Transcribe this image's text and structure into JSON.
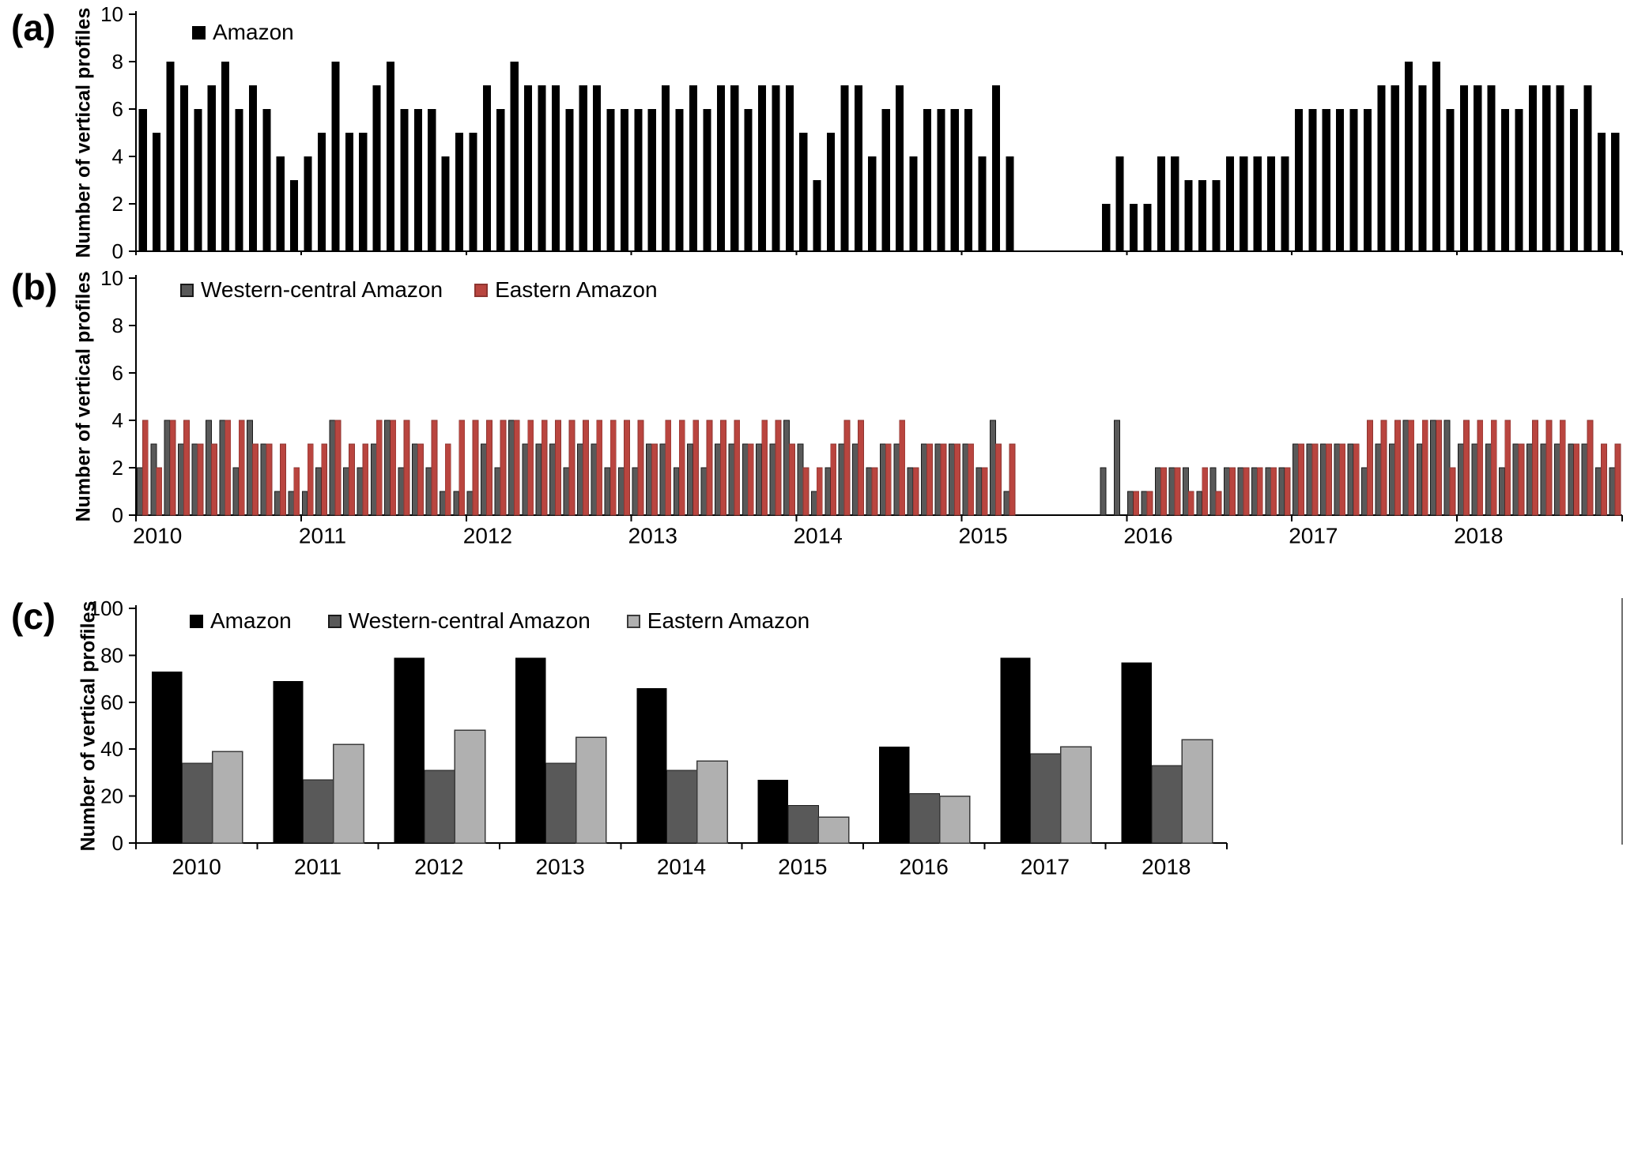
{
  "figure": {
    "panel_a_label": "(a)",
    "panel_b_label": "(b)",
    "panel_c_label": "(c)"
  },
  "chart_data": [
    {
      "id": "a",
      "type": "bar",
      "title": "",
      "ylabel": "Number of vertical profiles",
      "ylim": [
        0,
        10
      ],
      "yticks": [
        0,
        2,
        4,
        6,
        8,
        10
      ],
      "x_unit": "month",
      "x_range": "Jan 2010 - Dec 2018",
      "legend_position": "top-left-inside",
      "series": [
        {
          "name": "Amazon",
          "color": "#000000",
          "values": [
            6,
            5,
            8,
            7,
            6,
            7,
            8,
            6,
            7,
            6,
            4,
            3,
            4,
            5,
            8,
            5,
            5,
            7,
            8,
            6,
            6,
            6,
            4,
            5,
            5,
            7,
            6,
            8,
            7,
            7,
            7,
            6,
            7,
            7,
            6,
            6,
            6,
            6,
            7,
            6,
            7,
            6,
            7,
            7,
            6,
            7,
            7,
            7,
            5,
            3,
            5,
            7,
            7,
            4,
            6,
            7,
            4,
            6,
            6,
            6,
            6,
            4,
            7,
            4,
            0,
            0,
            0,
            0,
            0,
            0,
            2,
            4,
            2,
            2,
            4,
            4,
            3,
            3,
            3,
            4,
            4,
            4,
            4,
            4,
            6,
            6,
            6,
            6,
            6,
            6,
            7,
            7,
            8,
            7,
            8,
            6,
            7,
            7,
            7,
            6,
            6,
            7,
            7,
            7,
            6,
            7,
            5,
            5
          ]
        }
      ]
    },
    {
      "id": "b",
      "type": "bar",
      "title": "",
      "ylabel": "Number of vertical profiles",
      "ylim": [
        0,
        10
      ],
      "yticks": [
        0,
        2,
        4,
        6,
        8,
        10
      ],
      "x_unit": "month",
      "x_range": "Jan 2010 - Dec 2018",
      "x_years": [
        "2010",
        "2011",
        "2012",
        "2013",
        "2014",
        "2015",
        "2016",
        "2017",
        "2018"
      ],
      "legend_position": "top-left-inside",
      "series": [
        {
          "name": "Western-central Amazon",
          "color": "#595959",
          "values": [
            2,
            3,
            4,
            3,
            3,
            4,
            4,
            2,
            4,
            3,
            1,
            1,
            1,
            2,
            4,
            2,
            2,
            3,
            4,
            2,
            3,
            2,
            1,
            1,
            1,
            3,
            2,
            4,
            3,
            3,
            3,
            2,
            3,
            3,
            2,
            2,
            2,
            3,
            3,
            2,
            3,
            2,
            3,
            3,
            3,
            3,
            3,
            4,
            3,
            1,
            2,
            3,
            3,
            2,
            3,
            3,
            2,
            3,
            3,
            3,
            3,
            2,
            4,
            1,
            0,
            0,
            0,
            0,
            0,
            0,
            2,
            4,
            1,
            1,
            2,
            2,
            2,
            1,
            2,
            2,
            2,
            2,
            2,
            2,
            3,
            3,
            3,
            3,
            3,
            2,
            3,
            3,
            4,
            3,
            4,
            4,
            3,
            3,
            3,
            2,
            3,
            3,
            3,
            3,
            3,
            3,
            2,
            2
          ]
        },
        {
          "name": "Eastern Amazon",
          "color": "#b9453f",
          "values": [
            4,
            2,
            4,
            4,
            3,
            3,
            4,
            4,
            3,
            3,
            3,
            2,
            3,
            3,
            4,
            3,
            3,
            4,
            4,
            4,
            3,
            4,
            3,
            4,
            4,
            4,
            4,
            4,
            4,
            4,
            4,
            4,
            4,
            4,
            4,
            4,
            4,
            3,
            4,
            4,
            4,
            4,
            4,
            4,
            3,
            4,
            4,
            3,
            2,
            2,
            3,
            4,
            4,
            2,
            3,
            4,
            2,
            3,
            3,
            3,
            3,
            2,
            3,
            3,
            0,
            0,
            0,
            0,
            0,
            0,
            0,
            0,
            1,
            1,
            2,
            2,
            1,
            2,
            1,
            2,
            2,
            2,
            2,
            2,
            3,
            3,
            3,
            3,
            3,
            4,
            4,
            4,
            4,
            4,
            4,
            2,
            4,
            4,
            4,
            4,
            3,
            4,
            4,
            4,
            3,
            4,
            3,
            3
          ]
        }
      ]
    },
    {
      "id": "c",
      "type": "bar",
      "title": "",
      "ylabel": "Number of vertical profiles",
      "ylim": [
        0,
        100
      ],
      "yticks": [
        0,
        20,
        40,
        60,
        80,
        100
      ],
      "categories": [
        "2010",
        "2011",
        "2012",
        "2013",
        "2014",
        "2015",
        "2016",
        "2017",
        "2018"
      ],
      "legend_position": "top-left-inside",
      "series": [
        {
          "name": "Amazon",
          "color": "#000000",
          "values": [
            73,
            69,
            79,
            79,
            66,
            27,
            41,
            79,
            77
          ]
        },
        {
          "name": "Western-central Amazon",
          "color": "#595959",
          "values": [
            34,
            27,
            31,
            34,
            31,
            16,
            21,
            38,
            33
          ]
        },
        {
          "name": "Eastern Amazon",
          "color": "#b0b0b0",
          "values": [
            39,
            42,
            48,
            45,
            35,
            11,
            20,
            41,
            44
          ]
        }
      ]
    }
  ]
}
